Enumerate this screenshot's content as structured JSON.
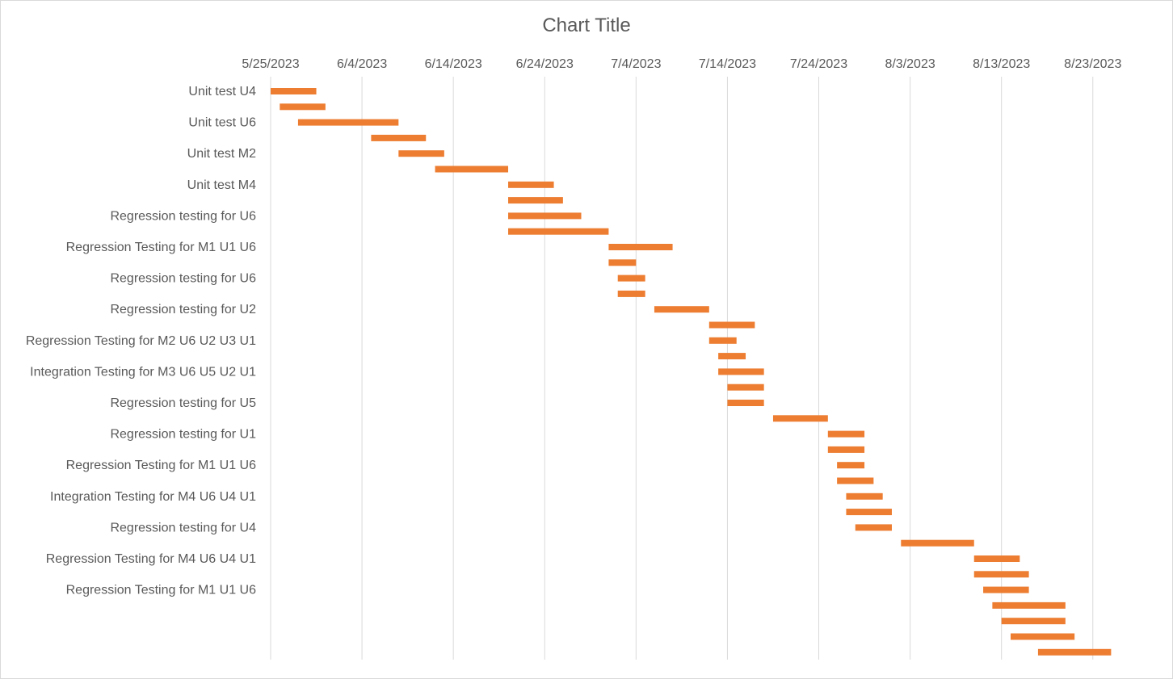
{
  "chart_data": {
    "type": "bar",
    "title": "Chart Title",
    "xlabel": "",
    "ylabel": "",
    "orientation": "horizontal-gantt",
    "x_axis_position": "top",
    "grid": true,
    "legend": "none",
    "bar_color": "#ED7D31",
    "xlim": [
      "2023-05-25",
      "2023-08-27"
    ],
    "x_ticks": [
      "5/25/2023",
      "6/4/2023",
      "6/14/2023",
      "6/24/2023",
      "7/4/2023",
      "7/14/2023",
      "7/24/2023",
      "8/3/2023",
      "8/13/2023",
      "8/23/2023"
    ],
    "x_tick_dates": [
      "2023-05-25",
      "2023-06-04",
      "2023-06-14",
      "2023-06-24",
      "2023-07-04",
      "2023-07-14",
      "2023-07-24",
      "2023-08-03",
      "2023-08-13",
      "2023-08-23"
    ],
    "category_labels": [
      "Unit test U4",
      "",
      "Unit test U6",
      "",
      "Unit test M2",
      "",
      "Unit test M4",
      "",
      "Regression testing for U6",
      "",
      "Regression Testing for M1 U1 U6",
      "",
      "Regression testing for U6",
      "",
      "Regression testing for U2",
      "",
      "Regression Testing for M2 U6 U2 U3 U1",
      "",
      "Integration Testing for M3 U6 U5 U2 U1",
      "",
      "Regression testing for U5",
      "",
      "Regression testing for U1",
      "",
      "Regression Testing for M1 U1 U6",
      "",
      "Integration Testing for M4 U6 U4 U1",
      "",
      "Regression testing for U4",
      "",
      "Regression Testing for M4 U6 U4 U1",
      "",
      "Regression Testing for M1 U1 U6",
      "",
      "",
      "",
      "",
      "",
      ""
    ],
    "tasks": [
      {
        "start": "2023-05-25",
        "end": "2023-05-30"
      },
      {
        "start": "2023-05-26",
        "end": "2023-05-31"
      },
      {
        "start": "2023-05-28",
        "end": "2023-06-08"
      },
      {
        "start": "2023-06-05",
        "end": "2023-06-11"
      },
      {
        "start": "2023-06-08",
        "end": "2023-06-13"
      },
      {
        "start": "2023-06-12",
        "end": "2023-06-20"
      },
      {
        "start": "2023-06-20",
        "end": "2023-06-25"
      },
      {
        "start": "2023-06-20",
        "end": "2023-06-26"
      },
      {
        "start": "2023-06-20",
        "end": "2023-06-28"
      },
      {
        "start": "2023-06-20",
        "end": "2023-07-01"
      },
      {
        "start": "2023-07-01",
        "end": "2023-07-08"
      },
      {
        "start": "2023-07-01",
        "end": "2023-07-04"
      },
      {
        "start": "2023-07-02",
        "end": "2023-07-05"
      },
      {
        "start": "2023-07-02",
        "end": "2023-07-05"
      },
      {
        "start": "2023-07-06",
        "end": "2023-07-12"
      },
      {
        "start": "2023-07-12",
        "end": "2023-07-17"
      },
      {
        "start": "2023-07-12",
        "end": "2023-07-15"
      },
      {
        "start": "2023-07-13",
        "end": "2023-07-16"
      },
      {
        "start": "2023-07-13",
        "end": "2023-07-18"
      },
      {
        "start": "2023-07-14",
        "end": "2023-07-18"
      },
      {
        "start": "2023-07-14",
        "end": "2023-07-18"
      },
      {
        "start": "2023-07-19",
        "end": "2023-07-25"
      },
      {
        "start": "2023-07-25",
        "end": "2023-07-29"
      },
      {
        "start": "2023-07-25",
        "end": "2023-07-29"
      },
      {
        "start": "2023-07-26",
        "end": "2023-07-29"
      },
      {
        "start": "2023-07-26",
        "end": "2023-07-30"
      },
      {
        "start": "2023-07-27",
        "end": "2023-07-31"
      },
      {
        "start": "2023-07-27",
        "end": "2023-08-01"
      },
      {
        "start": "2023-07-28",
        "end": "2023-08-01"
      },
      {
        "start": "2023-08-02",
        "end": "2023-08-10"
      },
      {
        "start": "2023-08-10",
        "end": "2023-08-15"
      },
      {
        "start": "2023-08-10",
        "end": "2023-08-16"
      },
      {
        "start": "2023-08-11",
        "end": "2023-08-16"
      },
      {
        "start": "2023-08-12",
        "end": "2023-08-20"
      },
      {
        "start": "2023-08-13",
        "end": "2023-08-20"
      },
      {
        "start": "2023-08-14",
        "end": "2023-08-21"
      },
      {
        "start": "2023-08-17",
        "end": "2023-08-25"
      }
    ]
  }
}
